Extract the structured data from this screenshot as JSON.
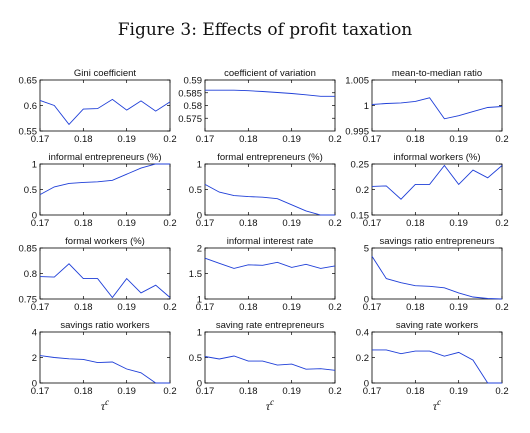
{
  "figure": {
    "title": "Figure 3: Effects of profit taxation"
  },
  "colors": {
    "series": "#1f3fd8",
    "axes": "#000000"
  },
  "chart_data": [
    {
      "type": "line",
      "title": "Gini coefficient",
      "xlabel": "",
      "ylim": [
        0.55,
        0.65
      ],
      "yticks": [
        "0.55",
        "0.6",
        "0.65"
      ],
      "xlim": [
        0.17,
        0.2
      ],
      "xticks": [
        "0.17",
        "0.18",
        "0.19",
        "0.2"
      ],
      "x": [
        0.17,
        0.1733,
        0.1767,
        0.18,
        0.1833,
        0.1867,
        0.19,
        0.1933,
        0.1967,
        0.2
      ],
      "y": [
        0.61,
        0.6,
        0.563,
        0.593,
        0.594,
        0.612,
        0.591,
        0.609,
        0.589,
        0.607
      ]
    },
    {
      "type": "line",
      "title": "coefficient of variation",
      "xlabel": "",
      "ylim": [
        0.57,
        0.59
      ],
      "yticks": [
        "0.575",
        "0.58",
        "0.585",
        "0.59"
      ],
      "xlim": [
        0.17,
        0.2
      ],
      "xticks": [
        "0.17",
        "0.18",
        "0.19",
        "0.2"
      ],
      "x": [
        0.17,
        0.1733,
        0.1767,
        0.18,
        0.1833,
        0.1867,
        0.19,
        0.1933,
        0.1967,
        0.2
      ],
      "y": [
        0.586,
        0.586,
        0.586,
        0.5858,
        0.5855,
        0.5851,
        0.5847,
        0.5842,
        0.5836,
        0.5836
      ]
    },
    {
      "type": "line",
      "title": "mean-to-median ratio",
      "xlabel": "",
      "ylim": [
        0.995,
        1.005
      ],
      "yticks": [
        "0.995",
        "1",
        "1.005"
      ],
      "xlim": [
        0.17,
        0.2
      ],
      "xticks": [
        "0.17",
        "0.18",
        "0.19",
        "0.2"
      ],
      "x": [
        0.17,
        0.1733,
        0.1767,
        0.18,
        0.1833,
        0.1867,
        0.19,
        0.1933,
        0.1967,
        0.2
      ],
      "y": [
        1.0002,
        1.0004,
        1.0005,
        1.0008,
        1.0015,
        0.9974,
        0.998,
        0.9988,
        0.9996,
        0.9998
      ]
    },
    {
      "type": "line",
      "title": "informal entrepreneurs (%)",
      "xlabel": "",
      "ylim": [
        0,
        1
      ],
      "yticks": [
        "0",
        "0.5",
        "1"
      ],
      "xlim": [
        0.17,
        0.2
      ],
      "xticks": [
        "0.17",
        "0.18",
        "0.19",
        "0.2"
      ],
      "x": [
        0.17,
        0.1733,
        0.1767,
        0.18,
        0.1833,
        0.1867,
        0.19,
        0.1933,
        0.1967,
        0.2
      ],
      "y": [
        0.4,
        0.55,
        0.62,
        0.64,
        0.65,
        0.68,
        0.8,
        0.92,
        1.0,
        1.0
      ]
    },
    {
      "type": "line",
      "title": "formal entrepreneurs (%)",
      "xlabel": "",
      "ylim": [
        0,
        1
      ],
      "yticks": [
        "0",
        "0.5",
        "1"
      ],
      "xlim": [
        0.17,
        0.2
      ],
      "xticks": [
        "0.17",
        "0.18",
        "0.19",
        "0.2"
      ],
      "x": [
        0.17,
        0.1733,
        0.1767,
        0.18,
        0.1833,
        0.1867,
        0.19,
        0.1933,
        0.1967,
        0.2
      ],
      "y": [
        0.6,
        0.45,
        0.38,
        0.36,
        0.35,
        0.32,
        0.2,
        0.08,
        0.0,
        0.0
      ]
    },
    {
      "type": "line",
      "title": "informal workers (%)",
      "xlabel": "",
      "ylim": [
        0.15,
        0.25
      ],
      "yticks": [
        "0.15",
        "0.2",
        "0.25"
      ],
      "xlim": [
        0.17,
        0.2
      ],
      "xticks": [
        "0.17",
        "0.18",
        "0.19",
        "0.2"
      ],
      "x": [
        0.17,
        0.1733,
        0.1767,
        0.18,
        0.1833,
        0.1867,
        0.19,
        0.1933,
        0.1967,
        0.2
      ],
      "y": [
        0.206,
        0.207,
        0.181,
        0.21,
        0.21,
        0.247,
        0.21,
        0.238,
        0.223,
        0.247
      ]
    },
    {
      "type": "line",
      "title": "formal workers (%)",
      "xlabel": "",
      "ylim": [
        0.75,
        0.85
      ],
      "yticks": [
        "0.75",
        "0.8",
        "0.85"
      ],
      "xlim": [
        0.17,
        0.2
      ],
      "xticks": [
        "0.17",
        "0.18",
        "0.19",
        "0.2"
      ],
      "x": [
        0.17,
        0.1733,
        0.1767,
        0.18,
        0.1833,
        0.1867,
        0.19,
        0.1933,
        0.1967,
        0.2
      ],
      "y": [
        0.794,
        0.793,
        0.819,
        0.79,
        0.79,
        0.753,
        0.79,
        0.762,
        0.777,
        0.753
      ]
    },
    {
      "type": "line",
      "title": "informal interest rate",
      "xlabel": "",
      "ylim": [
        1,
        2
      ],
      "yticks": [
        "1",
        "1.5",
        "2"
      ],
      "xlim": [
        0.17,
        0.2
      ],
      "xticks": [
        "0.17",
        "0.18",
        "0.19",
        "0.2"
      ],
      "x": [
        0.17,
        0.1733,
        0.1767,
        0.18,
        0.1833,
        0.1867,
        0.19,
        0.1933,
        0.1967,
        0.2
      ],
      "y": [
        1.8,
        1.7,
        1.6,
        1.67,
        1.66,
        1.72,
        1.62,
        1.68,
        1.6,
        1.65
      ]
    },
    {
      "type": "line",
      "title": "savings ratio entrepreneurs",
      "xlabel": "",
      "ylim": [
        0,
        5
      ],
      "yticks": [
        "0",
        "5"
      ],
      "xlim": [
        0.17,
        0.2
      ],
      "xticks": [
        "0.17",
        "0.18",
        "0.19",
        "0.2"
      ],
      "x": [
        0.17,
        0.1733,
        0.1767,
        0.18,
        0.1833,
        0.1867,
        0.19,
        0.1933,
        0.1967,
        0.2
      ],
      "y": [
        4.2,
        2.0,
        1.6,
        1.3,
        1.25,
        1.1,
        0.6,
        0.2,
        0.05,
        0.0
      ]
    },
    {
      "type": "line",
      "title": "savings ratio workers",
      "xlabel": "τc",
      "ylim": [
        0,
        4
      ],
      "yticks": [
        "0",
        "2",
        "4"
      ],
      "xlim": [
        0.17,
        0.2
      ],
      "xticks": [
        "0.17",
        "0.18",
        "0.19",
        "0.2"
      ],
      "x": [
        0.17,
        0.1733,
        0.1767,
        0.18,
        0.1833,
        0.1867,
        0.19,
        0.1933,
        0.1967,
        0.2
      ],
      "y": [
        2.15,
        2.0,
        1.9,
        1.85,
        1.6,
        1.65,
        1.1,
        0.8,
        0.0,
        0.0
      ]
    },
    {
      "type": "line",
      "title": "saving rate entrepreneurs",
      "xlabel": "τc",
      "ylim": [
        0,
        1
      ],
      "yticks": [
        "0",
        "0.5",
        "1"
      ],
      "xlim": [
        0.17,
        0.2
      ],
      "xticks": [
        "0.17",
        "0.18",
        "0.19",
        "0.2"
      ],
      "x": [
        0.17,
        0.1733,
        0.1767,
        0.18,
        0.1833,
        0.1867,
        0.19,
        0.1933,
        0.1967,
        0.2
      ],
      "y": [
        0.52,
        0.47,
        0.53,
        0.43,
        0.43,
        0.35,
        0.37,
        0.27,
        0.28,
        0.25
      ]
    },
    {
      "type": "line",
      "title": "saving rate workers",
      "xlabel": "τc",
      "ylim": [
        0,
        0.4
      ],
      "yticks": [
        "0",
        "0.2",
        "0.4"
      ],
      "xlim": [
        0.17,
        0.2
      ],
      "xticks": [
        "0.17",
        "0.18",
        "0.19",
        "0.2"
      ],
      "x": [
        0.17,
        0.1733,
        0.1767,
        0.18,
        0.1833,
        0.1867,
        0.19,
        0.1933,
        0.1967,
        0.2
      ],
      "y": [
        0.26,
        0.26,
        0.23,
        0.25,
        0.25,
        0.21,
        0.24,
        0.18,
        0.0,
        0.0
      ]
    }
  ]
}
